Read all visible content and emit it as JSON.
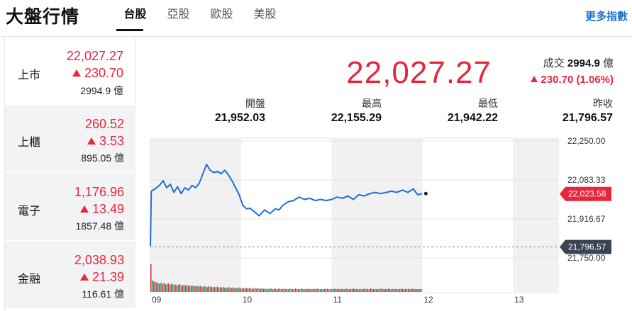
{
  "header": {
    "title": "大盤行情",
    "tabs": [
      {
        "label": "台股",
        "active": true
      },
      {
        "label": "亞股",
        "active": false
      },
      {
        "label": "歐股",
        "active": false
      },
      {
        "label": "美股",
        "active": false
      }
    ],
    "more_link": "更多指數"
  },
  "sidebar": {
    "items": [
      {
        "name": "上市",
        "price": "22,027.27",
        "change": "230.70",
        "volume": "2994.9 億",
        "active": true
      },
      {
        "name": "上櫃",
        "price": "260.52",
        "change": "3.53",
        "volume": "895.05 億",
        "active": false
      },
      {
        "name": "電子",
        "price": "1,176.96",
        "change": "13.49",
        "volume": "1857.48 億",
        "active": false
      },
      {
        "name": "金融",
        "price": "2,038.93",
        "change": "21.39",
        "volume": "116.61 億",
        "active": false
      }
    ]
  },
  "quote": {
    "price": "22,027.27",
    "volume_label": "成交",
    "volume_value": "2994.9",
    "volume_unit": "億",
    "change": "230.70 (1.06%)",
    "stats": [
      {
        "label": "開盤",
        "value": "21,952.03"
      },
      {
        "label": "最高",
        "value": "22,155.29"
      },
      {
        "label": "最低",
        "value": "21,942.22"
      },
      {
        "label": "昨收",
        "value": "21,796.57"
      }
    ]
  },
  "colors": {
    "up": "#e8263b",
    "line": "#1f6fd6",
    "accent": "#1a6fd4"
  },
  "chart_data": {
    "type": "line",
    "y_ticks": [
      "22,250.00",
      "22,083.33",
      "21,916.67",
      "21,750.00"
    ],
    "ylim": [
      21750,
      22250
    ],
    "x_ticks": [
      "09",
      "10",
      "11",
      "12",
      "13"
    ],
    "xlim": [
      9,
      13.5
    ],
    "current_label": "22,023.58",
    "current_value": 22023.58,
    "prev_close_label": "21,796.57",
    "prev_close_value": 21796.57,
    "series": [
      {
        "x": [
          9.0,
          9.01,
          9.05,
          9.1,
          9.14,
          9.18,
          9.22,
          9.26,
          9.3,
          9.34,
          9.38,
          9.42,
          9.46,
          9.5,
          9.54,
          9.58,
          9.62,
          9.66,
          9.7,
          9.74,
          9.78,
          9.82,
          9.86,
          9.9,
          9.94,
          9.98,
          10.02,
          10.06,
          10.1,
          10.14,
          10.2,
          10.26,
          10.32,
          10.38,
          10.42,
          10.46,
          10.52,
          10.58,
          10.64,
          10.7,
          10.76,
          10.82,
          10.88,
          10.94,
          11.0,
          11.06,
          11.12,
          11.18,
          11.24,
          11.3,
          11.36,
          11.42,
          11.48,
          11.54,
          11.6,
          11.66,
          11.72,
          11.78,
          11.84,
          11.9,
          11.95,
          12.0
        ],
        "y": [
          21800,
          22035,
          22045,
          22060,
          22080,
          22050,
          22065,
          22030,
          22055,
          22025,
          22050,
          22040,
          22060,
          22050,
          22070,
          22110,
          22150,
          22125,
          22115,
          22120,
          22110,
          22125,
          22105,
          22080,
          22050,
          22020,
          21975,
          21960,
          21962,
          21950,
          21930,
          21955,
          21940,
          21960,
          21955,
          21975,
          21990,
          21995,
          22010,
          22000,
          22005,
          21995,
          22000,
          21995,
          22000,
          22010,
          22005,
          22015,
          22000,
          22020,
          22015,
          22025,
          22030,
          22025,
          22030,
          22035,
          22030,
          22040,
          22030,
          22045,
          22020,
          22025
        ]
      }
    ],
    "volume": {
      "name": "volume",
      "values": [
        100,
        42,
        38,
        36,
        34,
        32,
        30,
        34,
        28,
        33,
        29,
        27,
        31,
        26,
        28,
        30,
        25,
        27,
        24,
        26,
        28,
        22,
        25,
        24,
        23,
        25,
        22,
        24,
        21,
        23,
        20,
        22,
        21,
        19,
        22,
        20,
        18,
        21,
        19,
        17,
        20,
        18,
        19,
        16,
        18,
        17,
        19,
        15,
        17,
        16,
        18,
        15,
        16,
        14,
        17,
        15,
        14,
        16,
        13,
        15,
        14,
        16,
        13,
        14,
        12,
        15,
        13,
        12,
        14,
        12,
        13,
        11,
        14,
        12,
        13,
        11,
        12,
        13,
        11,
        12,
        10,
        12,
        11,
        13,
        10,
        11,
        12,
        10,
        11,
        13,
        10,
        11,
        12,
        10,
        11,
        10,
        12,
        11,
        10,
        11,
        12,
        10,
        11,
        10,
        12,
        11,
        10,
        11,
        10,
        12,
        11,
        10,
        11,
        10,
        11,
        12,
        10,
        11,
        10,
        11,
        10,
        12,
        11,
        10,
        11,
        10,
        11,
        12,
        10,
        11,
        10,
        11,
        10,
        11,
        10,
        12,
        11,
        10,
        11,
        10,
        12,
        11,
        10,
        11,
        10,
        11,
        10,
        11,
        12,
        10,
        11,
        10,
        12,
        11,
        10,
        11,
        10,
        11,
        10,
        12,
        11,
        10,
        11,
        10,
        11,
        12,
        10,
        11,
        10,
        11,
        10,
        11,
        10,
        12,
        11,
        10,
        11,
        10,
        11,
        10,
        11,
        12,
        10,
        11,
        10,
        11,
        10,
        11
      ],
      "colors_note": "alternating up/down"
    }
  }
}
